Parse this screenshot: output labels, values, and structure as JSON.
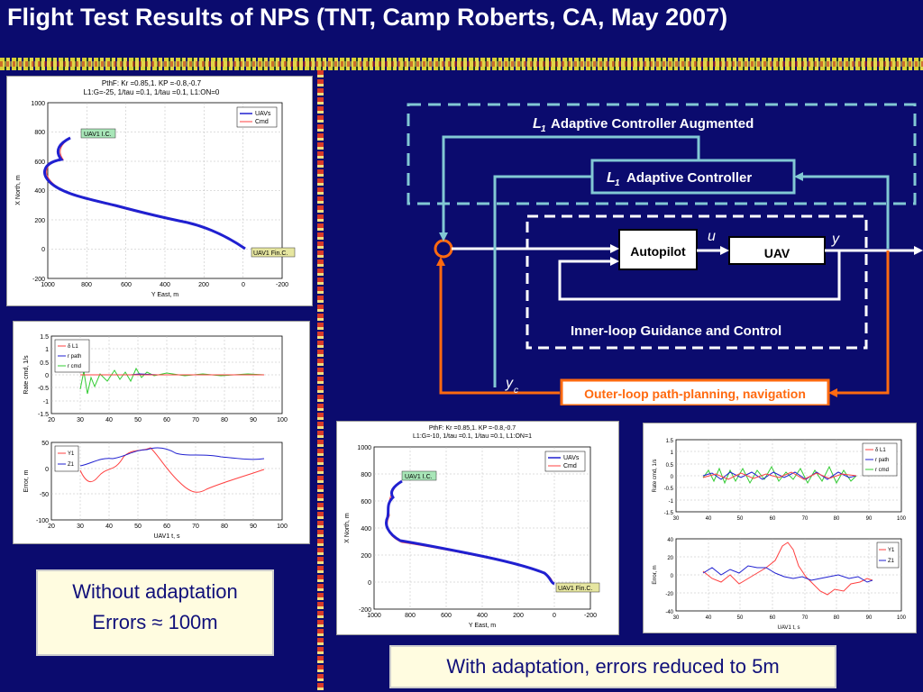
{
  "slide": {
    "title": "Flight Test Results of NPS (TNT, Camp Roberts, CA, May 2007)"
  },
  "diagram": {
    "outer_box_label_sym": "L",
    "outer_box_label_sub": "1",
    "outer_box_label_text": "Adaptive Controller Augmented",
    "adaptive_ctrl_sym": "L",
    "adaptive_ctrl_sub": "1",
    "adaptive_ctrl_text": "Adaptive Controller",
    "autopilot": "Autopilot",
    "uav": "UAV",
    "u": "u",
    "y": "y",
    "yc": "y",
    "yc_sub": "c",
    "inner_loop": "Inner-loop Guidance and Control",
    "outer_loop": "Outer-loop path-planning, navigation",
    "colors": {
      "cyan": "#82c8d4",
      "orange": "#ff6a10",
      "white": "#ffffff"
    }
  },
  "plot1": {
    "header_line1": "PthF: Kr =0.85,1. KP   =-0.8,-0.7",
    "header_line2": "L1:G=-25, 1/tau =0.1, 1/tau =0.1, L1:ON=0",
    "xlabel": "Y East, m",
    "ylabel": "X North, m",
    "yticks": [
      "1000",
      "800",
      "600",
      "400",
      "200",
      "0",
      "-200"
    ],
    "xticks": [
      "1000",
      "800",
      "600",
      "400",
      "200",
      "0",
      "-200"
    ],
    "legend": [
      "UAVs",
      "Cmd"
    ],
    "start_tag": "UAV1 I.C.",
    "end_tag": "UAV1 Fin.C."
  },
  "plot2": {
    "top_ylabel": "Rate cmd, 1/s",
    "top_yticks": [
      "1.5",
      "1",
      "0.5",
      "0",
      "-0.5",
      "-1",
      "-1.5"
    ],
    "xticks": [
      "20",
      "30",
      "40",
      "50",
      "60",
      "70",
      "80",
      "90",
      "100"
    ],
    "legend_top": [
      "δ L1",
      "r path",
      "r cmd"
    ],
    "bot_ylabel": "Error, m",
    "bot_yticks": [
      "50",
      "0",
      "-50",
      "-100"
    ],
    "legend_bot": [
      "Y1",
      "Z1"
    ],
    "xlabel": "UAV1 t, s"
  },
  "plot3": {
    "header_line1": "PthF: Kr =0.85,1. KP   =-0.8,-0.7",
    "header_line2": "L1:G=-10, 1/tau =0.1, 1/tau =0.1, L1:ON=1",
    "xlabel": "Y East, m",
    "ylabel": "X North, m",
    "yticks": [
      "1000",
      "800",
      "600",
      "400",
      "200",
      "0",
      "-200"
    ],
    "xticks": [
      "1000",
      "800",
      "600",
      "400",
      "200",
      "0",
      "-200"
    ],
    "legend": [
      "UAVs",
      "Cmd"
    ],
    "start_tag": "UAV1 I.C.",
    "end_tag": "UAV1 Fin.C."
  },
  "plot4": {
    "top_ylabel": "Rate cmd, 1/s",
    "top_yticks": [
      "1.5",
      "1",
      "0.5",
      "0",
      "-0.5",
      "-1",
      "-1.5"
    ],
    "xticks": [
      "30",
      "40",
      "50",
      "60",
      "70",
      "80",
      "90",
      "100"
    ],
    "legend_top": [
      "δ L1",
      "r path",
      "r cmd"
    ],
    "bot_ylabel": "Error, m",
    "bot_yticks": [
      "40",
      "20",
      "0",
      "-20",
      "-40"
    ],
    "legend_bot": [
      "Y1",
      "Z1"
    ],
    "xlabel": "UAV1 t, s"
  },
  "captions": {
    "without_line1": "Without adaptation",
    "without_line2": "Errors ≈ 100m",
    "with": "With adaptation, errors reduced to 5m"
  }
}
